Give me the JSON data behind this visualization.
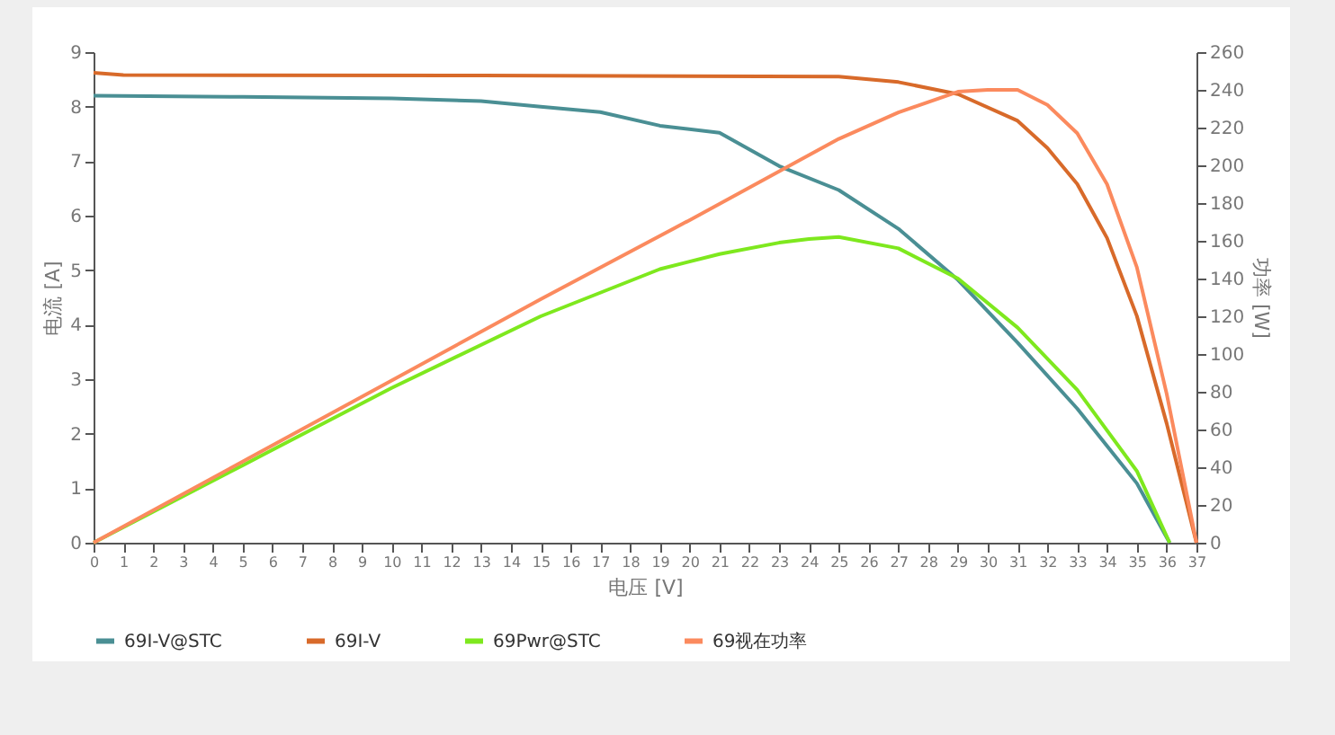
{
  "chart_data": {
    "type": "line",
    "xlabel": "电压 [V]",
    "ylabel": "电流 [A]",
    "y2label": "功率 [W]",
    "xlim": [
      0,
      37
    ],
    "xticks": [
      0,
      1,
      2,
      3,
      4,
      5,
      6,
      7,
      8,
      9,
      10,
      11,
      12,
      13,
      14,
      15,
      16,
      17,
      18,
      19,
      20,
      21,
      22,
      23,
      24,
      25,
      26,
      27,
      28,
      29,
      30,
      31,
      32,
      33,
      34,
      35,
      36,
      37
    ],
    "ylim": [
      0,
      9
    ],
    "yticks": [
      0,
      1,
      2,
      3,
      4,
      5,
      6,
      7,
      8,
      9
    ],
    "y2lim": [
      0,
      260
    ],
    "y2ticks": [
      0,
      20,
      40,
      60,
      80,
      100,
      120,
      140,
      160,
      180,
      200,
      220,
      240,
      260
    ],
    "grid": false,
    "legend": "bottom",
    "marker": "none",
    "line_style": "solid",
    "series": [
      {
        "name": "69I-V@STC",
        "color": "#4a8f94",
        "x": [
          0,
          5,
          10,
          13,
          15,
          17,
          19,
          21,
          23,
          25,
          27,
          29,
          31,
          33,
          35,
          36.1
        ],
        "values": [
          8.2,
          8.18,
          8.15,
          8.1,
          8.0,
          7.9,
          7.65,
          7.52,
          6.91,
          6.47,
          5.76,
          4.82,
          3.67,
          2.46,
          1.09,
          0
        ]
      },
      {
        "name": "69I-V",
        "color": "#d86a2a",
        "x": [
          0,
          1,
          13,
          25,
          27,
          29,
          31,
          32,
          33,
          34,
          35,
          36,
          37
        ],
        "values": [
          8.62,
          8.58,
          8.57,
          8.55,
          8.45,
          8.23,
          7.74,
          7.24,
          6.58,
          5.59,
          4.16,
          2.19,
          0
        ]
      },
      {
        "name": "69Pwr@STC",
        "color": "#7ee81e",
        "axis": "y2",
        "x": [
          0,
          5,
          10,
          15,
          19,
          21,
          23,
          24,
          25,
          27,
          29,
          31,
          33,
          35,
          36.1
        ],
        "values": [
          0,
          41,
          82,
          120,
          145,
          153,
          159,
          161,
          162,
          156,
          140,
          114,
          81,
          38,
          0
        ]
      },
      {
        "name": "69视在功率",
        "color": "#fb8a5e",
        "axis": "y2",
        "x": [
          0,
          5,
          10,
          15,
          20,
          25,
          27,
          29,
          30,
          31,
          32,
          33,
          34,
          35,
          36,
          37
        ],
        "values": [
          0,
          43,
          86,
          129,
          171,
          214,
          228,
          239,
          240,
          240,
          232,
          217,
          190,
          146,
          79,
          0
        ]
      }
    ]
  }
}
